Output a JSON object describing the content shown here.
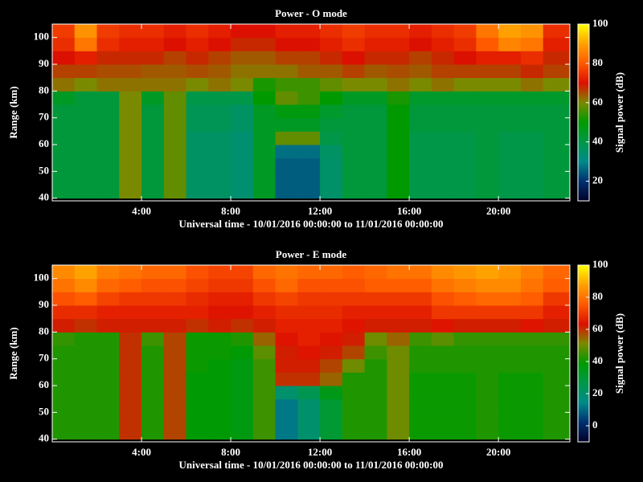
{
  "chart_data": [
    {
      "type": "heatmap",
      "title": "Power - O mode",
      "xlabel": "Universal time - 10/01/2016 00:00:00 to 11/01/2016 00:00:00",
      "ylabel": "Range (km)",
      "zlabel": "Signal power (dB)",
      "x": [
        0,
        1,
        2,
        3,
        4,
        5,
        6,
        7,
        8,
        9,
        10,
        11,
        12,
        13,
        14,
        15,
        16,
        17,
        18,
        19,
        20,
        21,
        22,
        23.2
      ],
      "y": [
        40,
        45,
        50,
        55,
        60,
        65,
        70,
        75,
        80,
        85,
        90,
        95,
        100,
        105
      ],
      "xlim": [
        0,
        23.2
      ],
      "ylim": [
        39,
        105
      ],
      "xticks": [
        {
          "value": 4,
          "label": "4:00"
        },
        {
          "value": 8,
          "label": "8:00"
        },
        {
          "value": 12,
          "label": "12:00"
        },
        {
          "value": 16,
          "label": "16:00"
        },
        {
          "value": 20,
          "label": "20:00"
        }
      ],
      "yticks": [
        40,
        50,
        60,
        70,
        80,
        90,
        100
      ],
      "zlim": [
        10,
        100
      ],
      "zticks": [
        20,
        40,
        60,
        80,
        100
      ],
      "colormap": [
        "#000028",
        "#003070",
        "#008a8a",
        "#009848",
        "#009a00",
        "#7a8a00",
        "#dc1000",
        "#ff5a00",
        "#ffa000",
        "#ffff00"
      ],
      "values": [
        [
          42,
          42,
          42,
          60,
          42,
          58,
          36,
          36,
          34,
          45,
          25,
          25,
          35,
          42,
          42,
          50,
          40,
          40,
          40,
          42,
          40,
          40,
          42
        ],
        [
          42,
          42,
          42,
          60,
          42,
          58,
          36,
          36,
          34,
          45,
          25,
          25,
          35,
          42,
          42,
          50,
          40,
          40,
          40,
          42,
          40,
          40,
          42
        ],
        [
          42,
          42,
          42,
          60,
          42,
          58,
          36,
          36,
          34,
          45,
          25,
          25,
          35,
          42,
          42,
          50,
          40,
          40,
          40,
          42,
          40,
          40,
          42
        ],
        [
          42,
          42,
          42,
          60,
          42,
          58,
          36,
          36,
          34,
          45,
          27,
          27,
          36,
          42,
          42,
          50,
          40,
          40,
          40,
          42,
          40,
          40,
          42
        ],
        [
          42,
          42,
          42,
          60,
          42,
          58,
          36,
          36,
          34,
          45,
          58,
          58,
          40,
          42,
          42,
          50,
          40,
          40,
          40,
          42,
          40,
          40,
          42
        ],
        [
          42,
          42,
          42,
          60,
          42,
          58,
          38,
          38,
          36,
          45,
          45,
          45,
          42,
          42,
          42,
          50,
          42,
          42,
          42,
          42,
          42,
          42,
          42
        ],
        [
          42,
          42,
          42,
          60,
          42,
          58,
          38,
          38,
          36,
          45,
          48,
          48,
          44,
          42,
          42,
          50,
          42,
          42,
          42,
          42,
          42,
          42,
          42
        ],
        [
          45,
          42,
          42,
          60,
          45,
          58,
          40,
          40,
          40,
          50,
          58,
          55,
          50,
          45,
          45,
          52,
          44,
          44,
          44,
          44,
          44,
          44,
          44
        ],
        [
          62,
          60,
          62,
          62,
          62,
          62,
          60,
          62,
          60,
          52,
          55,
          55,
          58,
          60,
          60,
          62,
          60,
          62,
          60,
          60,
          60,
          62,
          60
        ],
        [
          66,
          66,
          65,
          65,
          64,
          64,
          65,
          64,
          62,
          62,
          62,
          64,
          64,
          66,
          64,
          65,
          64,
          66,
          66,
          66,
          66,
          68,
          66
        ],
        [
          70,
          72,
          68,
          68,
          68,
          66,
          68,
          66,
          64,
          64,
          66,
          66,
          68,
          70,
          68,
          68,
          66,
          68,
          70,
          72,
          72,
          74,
          68
        ],
        [
          74,
          84,
          74,
          72,
          72,
          70,
          72,
          70,
          68,
          68,
          70,
          70,
          72,
          74,
          72,
          72,
          70,
          72,
          74,
          80,
          86,
          84,
          72
        ],
        [
          76,
          88,
          76,
          74,
          74,
          72,
          74,
          72,
          70,
          70,
          72,
          72,
          74,
          76,
          74,
          74,
          72,
          74,
          76,
          84,
          90,
          88,
          74
        ]
      ]
    },
    {
      "type": "heatmap",
      "title": "Power - E mode",
      "xlabel": "Universal time - 10/01/2016 00:00:00 to 11/01/2016 00:00:00",
      "ylabel": "Range (km)",
      "zlabel": "Signal power (dB)",
      "x": [
        0,
        1,
        2,
        3,
        4,
        5,
        6,
        7,
        8,
        9,
        10,
        11,
        12,
        13,
        14,
        15,
        16,
        17,
        18,
        19,
        20,
        21,
        22,
        23.2
      ],
      "y": [
        40,
        45,
        50,
        55,
        60,
        65,
        70,
        75,
        80,
        85,
        90,
        95,
        100,
        105
      ],
      "xlim": [
        0,
        23.2
      ],
      "ylim": [
        39,
        105
      ],
      "xticks": [
        {
          "value": 4,
          "label": "4:00"
        },
        {
          "value": 8,
          "label": "8:00"
        },
        {
          "value": 12,
          "label": "12:00"
        },
        {
          "value": 16,
          "label": "16:00"
        },
        {
          "value": 20,
          "label": "20:00"
        }
      ],
      "yticks": [
        40,
        50,
        60,
        70,
        80,
        90,
        100
      ],
      "zlim": [
        -10,
        100
      ],
      "zticks": [
        0,
        20,
        40,
        60,
        80,
        100
      ],
      "colormap": [
        "#000028",
        "#003070",
        "#008a8a",
        "#009848",
        "#009a00",
        "#7a8a00",
        "#dc1000",
        "#ff5a00",
        "#ffa000",
        "#ffff00"
      ],
      "values": [
        [
          42,
          42,
          42,
          60,
          42,
          58,
          38,
          38,
          36,
          45,
          12,
          20,
          30,
          42,
          42,
          50,
          40,
          40,
          40,
          42,
          40,
          40,
          42
        ],
        [
          42,
          42,
          42,
          60,
          42,
          58,
          38,
          38,
          36,
          45,
          12,
          20,
          30,
          42,
          42,
          50,
          40,
          40,
          40,
          42,
          40,
          40,
          42
        ],
        [
          42,
          42,
          42,
          60,
          42,
          58,
          38,
          38,
          36,
          45,
          12,
          20,
          30,
          42,
          42,
          50,
          40,
          40,
          40,
          42,
          40,
          40,
          42
        ],
        [
          42,
          42,
          42,
          60,
          42,
          58,
          38,
          38,
          36,
          45,
          20,
          25,
          35,
          42,
          42,
          50,
          40,
          40,
          40,
          42,
          40,
          40,
          42
        ],
        [
          42,
          42,
          42,
          60,
          42,
          58,
          38,
          38,
          36,
          45,
          60,
          60,
          55,
          42,
          42,
          50,
          40,
          40,
          40,
          42,
          40,
          40,
          42
        ],
        [
          42,
          42,
          42,
          60,
          42,
          58,
          40,
          38,
          36,
          45,
          62,
          62,
          58,
          50,
          42,
          50,
          42,
          42,
          42,
          42,
          42,
          42,
          42
        ],
        [
          42,
          42,
          42,
          60,
          42,
          58,
          40,
          40,
          38,
          48,
          62,
          64,
          62,
          58,
          45,
          50,
          42,
          42,
          42,
          42,
          42,
          42,
          42
        ],
        [
          44,
          42,
          42,
          60,
          45,
          58,
          40,
          40,
          42,
          55,
          64,
          66,
          64,
          62,
          50,
          55,
          45,
          48,
          44,
          44,
          44,
          44,
          44
        ],
        [
          62,
          60,
          62,
          62,
          62,
          62,
          60,
          62,
          60,
          62,
          66,
          66,
          66,
          64,
          62,
          62,
          62,
          64,
          62,
          62,
          62,
          64,
          62
        ],
        [
          68,
          68,
          66,
          66,
          66,
          66,
          66,
          64,
          64,
          66,
          68,
          68,
          68,
          66,
          66,
          66,
          66,
          70,
          70,
          70,
          70,
          70,
          66
        ],
        [
          74,
          76,
          72,
          70,
          70,
          70,
          68,
          66,
          66,
          70,
          72,
          70,
          70,
          70,
          70,
          70,
          70,
          74,
          76,
          78,
          78,
          76,
          70
        ],
        [
          80,
          84,
          78,
          76,
          74,
          74,
          72,
          70,
          70,
          74,
          78,
          74,
          74,
          74,
          76,
          76,
          76,
          80,
          82,
          84,
          84,
          80,
          76
        ],
        [
          84,
          88,
          82,
          80,
          78,
          78,
          74,
          72,
          72,
          78,
          80,
          78,
          78,
          76,
          78,
          80,
          80,
          84,
          86,
          88,
          86,
          82,
          78
        ]
      ]
    }
  ]
}
